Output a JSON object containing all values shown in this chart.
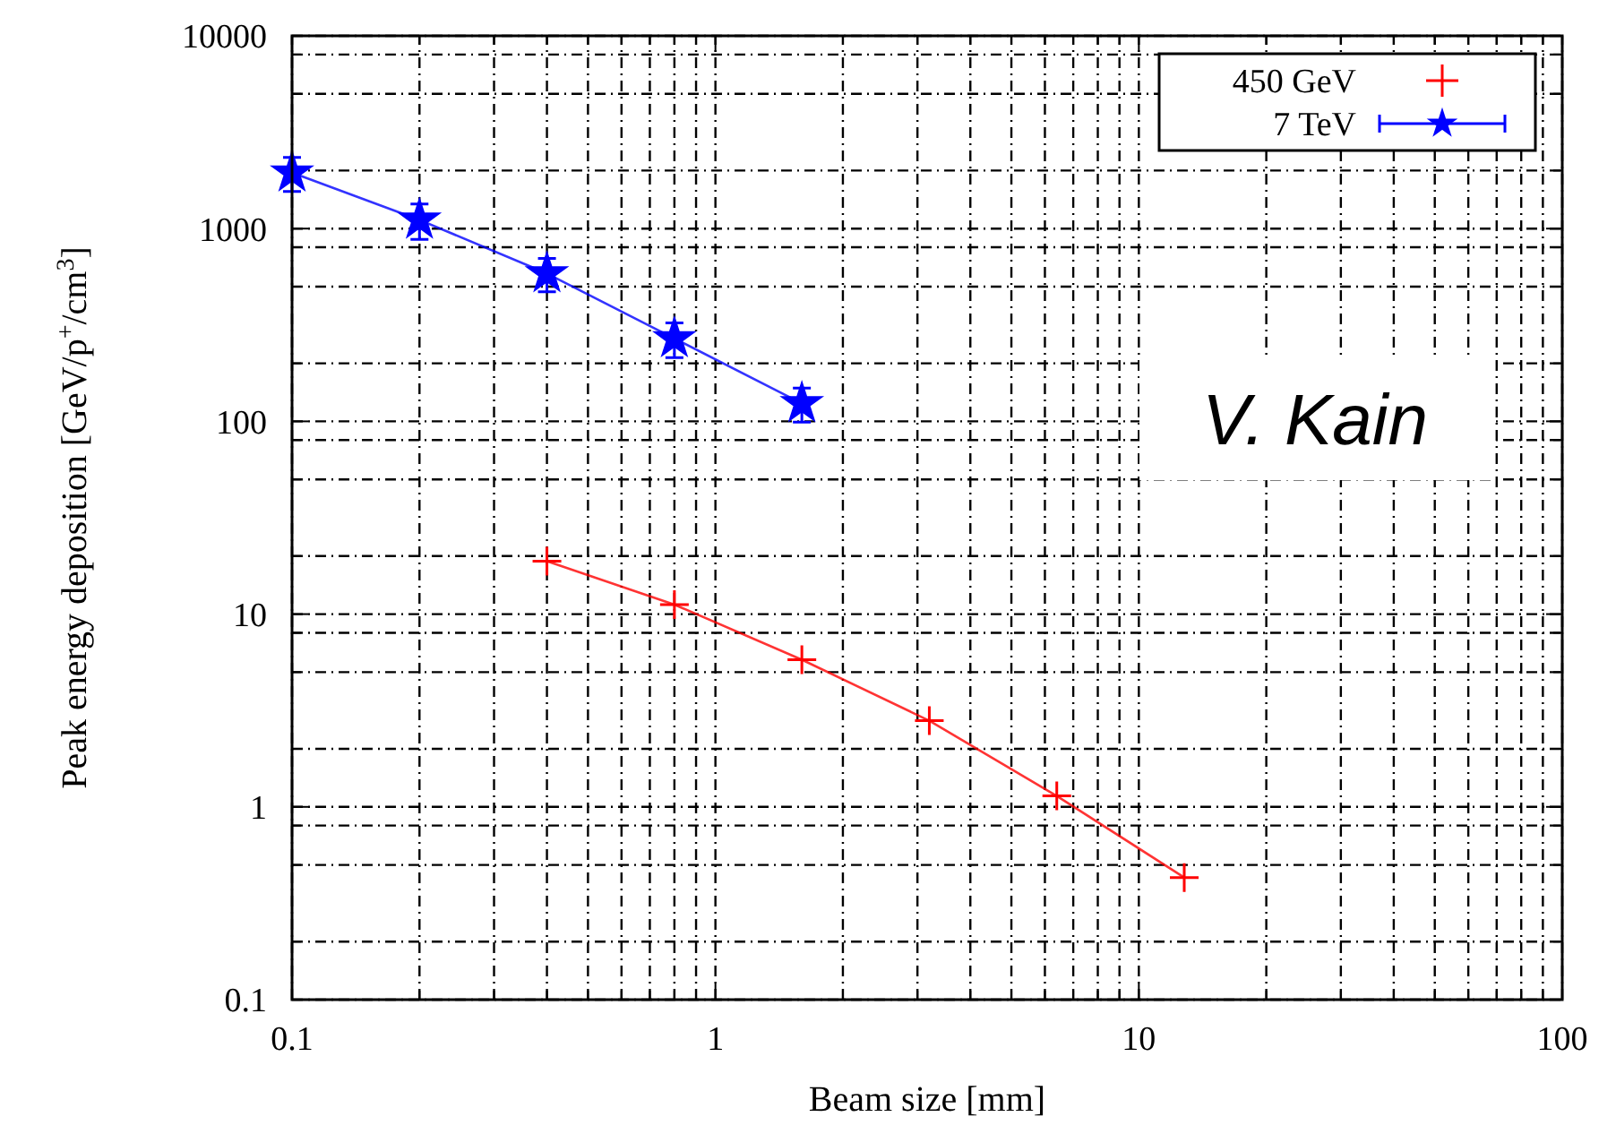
{
  "chart_data": {
    "type": "line",
    "xlabel": "Beam size [mm]",
    "ylabel": "Peak energy deposition [GeV/p$^{+}$/cm$^{3}$]",
    "log": "xy",
    "grid": true,
    "legend": "top right",
    "xlim": [
      0.1,
      100
    ],
    "ylim": [
      0.1,
      10000
    ],
    "xticks": [
      0.1,
      {
        "value": 0.2,
        "label": null
      },
      {
        "value": 0.3,
        "label": null
      },
      {
        "value": 0.4,
        "label": null
      },
      {
        "value": 0.5,
        "label": null
      },
      {
        "value": 0.6,
        "label": null
      },
      {
        "value": 0.7,
        "label": null
      },
      {
        "value": 0.8,
        "label": null
      },
      {
        "value": 0.9,
        "label": null
      },
      1,
      {
        "value": 2,
        "label": null
      },
      {
        "value": 3,
        "label": null
      },
      {
        "value": 4,
        "label": null
      },
      {
        "value": 5,
        "label": null
      },
      {
        "value": 6,
        "label": null
      },
      {
        "value": 7,
        "label": null
      },
      {
        "value": 8,
        "label": null
      },
      {
        "value": 9,
        "label": null
      },
      10,
      {
        "value": 20,
        "label": null
      },
      {
        "value": 30,
        "label": null
      },
      {
        "value": 40,
        "label": null
      },
      {
        "value": 50,
        "label": null
      },
      {
        "value": 60,
        "label": null
      },
      {
        "value": 70,
        "label": null
      },
      {
        "value": 80,
        "label": null
      },
      {
        "value": 90,
        "label": null
      },
      100
    ],
    "yticks": [
      0.1,
      {
        "value": 0.2,
        "label": null
      },
      {
        "value": 0.5,
        "label": null
      },
      {
        "value": 0.8,
        "label": null
      },
      1,
      {
        "value": 2,
        "label": null
      },
      {
        "value": 5,
        "label": null
      },
      {
        "value": 8,
        "label": null
      },
      10,
      {
        "value": 20,
        "label": null
      },
      {
        "value": 50,
        "label": null
      },
      {
        "value": 80,
        "label": null
      },
      100,
      {
        "value": 200,
        "label": null
      },
      {
        "value": 500,
        "label": null
      },
      {
        "value": 800,
        "label": null
      },
      1000,
      {
        "value": 2000,
        "label": null
      },
      {
        "value": 5000,
        "label": null
      },
      {
        "value": 8000,
        "label": null
      },
      10000
    ],
    "series": [
      {
        "name": "450 GeV",
        "color": "#ff0000",
        "marker": "cross",
        "x": [
          0.4,
          0.8,
          1.6,
          3.2,
          6.4,
          12.8
        ],
        "values": [
          18.8,
          11.2,
          5.8,
          2.8,
          1.14,
          0.43
        ]
      },
      {
        "name": "7 TeV",
        "color": "#0000ff",
        "marker": "star",
        "x": [
          0.1,
          0.2,
          0.4,
          0.8,
          1.6
        ],
        "values": [
          1950,
          1110,
          585,
          269,
          124
        ],
        "errors": [
          390,
          230,
          115,
          55,
          25
        ]
      }
    ],
    "annotations": [
      "V. Kain"
    ]
  }
}
